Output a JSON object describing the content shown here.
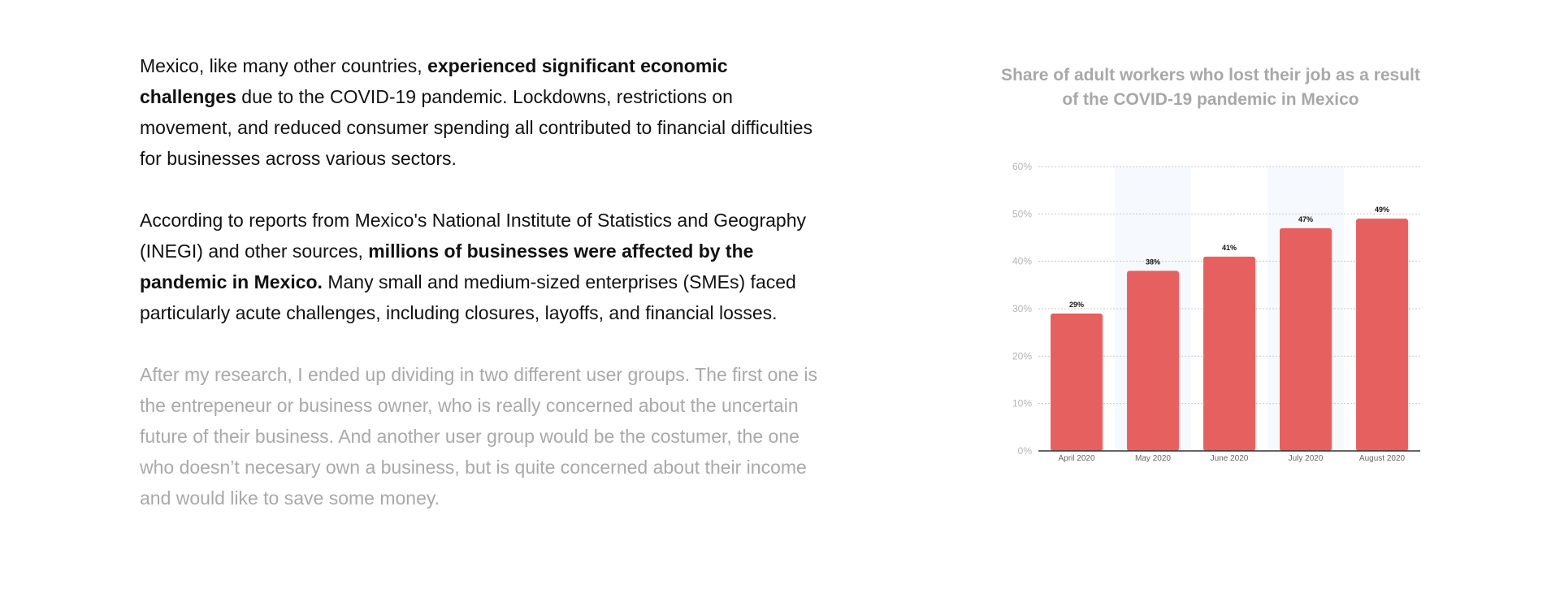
{
  "text": {
    "p1": [
      "Mexico, like many other countries, ",
      "experienced significant economic challenges",
      " due to the COVID-19 pandemic. Lockdowns, restrictions on movement, and reduced consumer spending all contributed to financial difficulties for businesses across various sectors."
    ],
    "p2": [
      "According to reports from Mexico's National Institute of Statistics and Geography (INEGI) and other sources, ",
      "millions of businesses were affected by the pandemic in Mexico.",
      " Many small and medium-sized enterprises (SMEs) faced particularly acute challenges, including closures, layoffs, and financial losses."
    ],
    "p3": "After my research, I ended up dividing in two different user groups. The first one is the entrepeneur or business owner, who is really concerned about the uncertain future of their business. And another user group would be the costumer, the one who doesn’t necesary own a business, but is quite concerned about their income and would like to save some money."
  },
  "colors": {
    "bar": "#e5605e",
    "highlight_band": "#f6f9fd",
    "title": "#a8a8a8",
    "muted_text": "#a9a9a9"
  },
  "chart_data": {
    "type": "bar",
    "title": "Share of adult workers who lost their job as a result of the COVID-19 pandemic in Mexico",
    "categories": [
      "April 2020",
      "May 2020",
      "June 2020",
      "July 2020",
      "August 2020"
    ],
    "values": [
      29,
      38,
      41,
      47,
      49
    ],
    "value_labels": [
      "29%",
      "38%",
      "41%",
      "47%",
      "49%"
    ],
    "yticks": [
      "0%",
      "10%",
      "20%",
      "30%",
      "40%",
      "50%",
      "60%"
    ],
    "ylim": [
      0,
      60
    ],
    "grid": true,
    "highlighted_columns": [
      "May 2020",
      "July 2020"
    ]
  }
}
